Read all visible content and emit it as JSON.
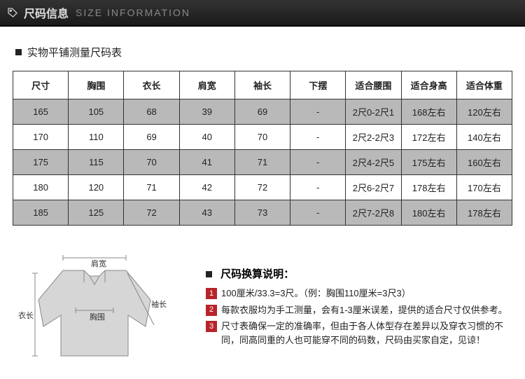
{
  "header": {
    "title": "尺码信息",
    "subtitle": "SIZE INFORMATION"
  },
  "subheading": "实物平铺测量尺码表",
  "table": {
    "columns": [
      "尺寸",
      "胸围",
      "衣长",
      "肩宽",
      "袖长",
      "下摆",
      "适合腰围",
      "适合身高",
      "适合体重"
    ],
    "col_widths": [
      "70",
      "70",
      "60",
      "60",
      "60",
      "60",
      "100",
      "100",
      "100"
    ],
    "rows": [
      [
        "165",
        "105",
        "68",
        "39",
        "69",
        "-",
        "2尺0-2尺1",
        "168左右",
        "120左右"
      ],
      [
        "170",
        "110",
        "69",
        "40",
        "70",
        "-",
        "2尺2-2尺3",
        "172左右",
        "140左右"
      ],
      [
        "175",
        "115",
        "70",
        "41",
        "71",
        "-",
        "2尺4-2尺5",
        "175左右",
        "160左右"
      ],
      [
        "180",
        "120",
        "71",
        "42",
        "72",
        "-",
        "2尺6-2尺7",
        "178左右",
        "170左右"
      ],
      [
        "185",
        "125",
        "72",
        "43",
        "73",
        "-",
        "2尺7-2尺8",
        "180左右",
        "178左右"
      ]
    ],
    "odd_bg": "#b9b9b9",
    "even_bg": "#ffffff",
    "border_color": "#333333"
  },
  "diagram": {
    "labels": {
      "shoulder": "肩宽",
      "chest": "胸围",
      "length": "衣长",
      "sleeve": "袖长"
    }
  },
  "notes": {
    "title": "尺码换算说明：",
    "accent": "#b7242a",
    "items": [
      "100厘米/33.3=3尺。（例：胸围110厘米=3尺3）",
      "每款衣服均为手工测量，会有1-3厘米误差，提供的适合尺寸仅供参考。",
      "尺寸表确保一定的准确率，但由于各人体型存在差异以及穿衣习惯的不同，同高同重的人也可能穿不同的码数，尺码由买家自定，见谅！"
    ]
  }
}
